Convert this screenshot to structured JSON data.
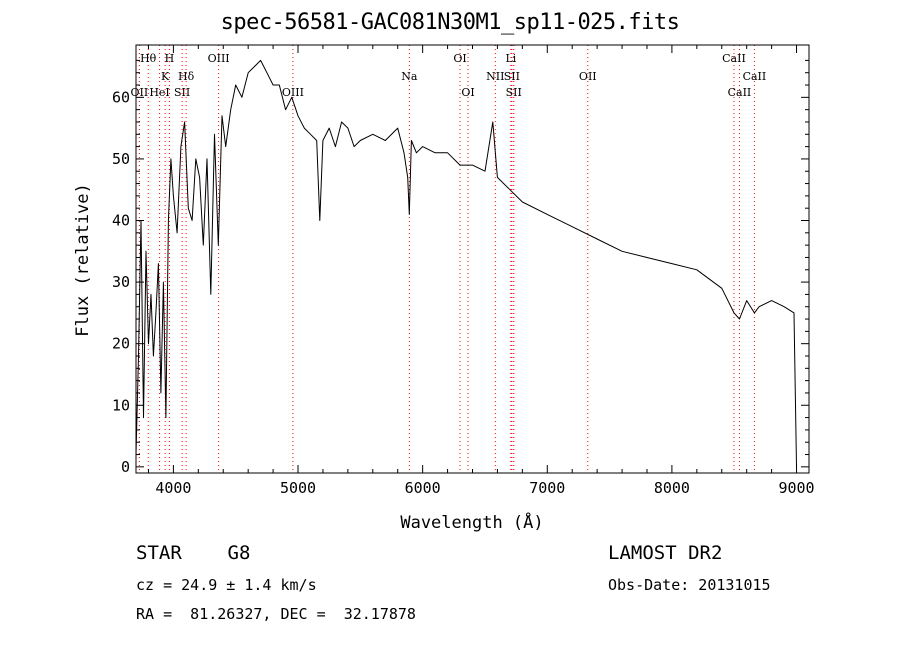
{
  "header": {
    "title": "spec-56581-GAC081N30M1_sp11-025.fits"
  },
  "info": {
    "object_class": "STAR    G8",
    "redshift": "cz = 24.9 ± 1.4 km/s",
    "coordinates": "RA =  81.26327, DEC =  32.17878",
    "survey": "LAMOST DR2",
    "obs_date": "Obs-Date: 20131015"
  },
  "chart_data": {
    "type": "line",
    "title": "spec-56581-GAC081N30M1_sp11-025.fits",
    "xlabel": "Wavelength (Å)",
    "ylabel": "Flux (relative)",
    "xlim": [
      3700,
      9100
    ],
    "ylim": [
      -1,
      68.5
    ],
    "xticks": [
      4000,
      5000,
      6000,
      7000,
      8000,
      9000
    ],
    "yticks": [
      0,
      10,
      20,
      30,
      40,
      50,
      60
    ],
    "grid": false,
    "line_color": "#000000",
    "marker_color": "#ff0000",
    "series": [
      {
        "x": [
          3700,
          3720,
          3740,
          3760,
          3780,
          3800,
          3820,
          3840,
          3860,
          3880,
          3900,
          3920,
          3940,
          3960,
          3980,
          4000,
          4030,
          4060,
          4090,
          4120,
          4150,
          4180,
          4210,
          4240,
          4270,
          4300,
          4330,
          4360,
          4390,
          4420,
          4460,
          4500,
          4550,
          4600,
          4650,
          4700,
          4750,
          4800,
          4850,
          4900,
          4950,
          5000,
          5050,
          5100,
          5150,
          5175,
          5200,
          5250,
          5300,
          5350,
          5400,
          5450,
          5500,
          5600,
          5700,
          5800,
          5850,
          5880,
          5893,
          5910,
          5950,
          6000,
          6100,
          6200,
          6300,
          6400,
          6500,
          6563,
          6600,
          6700,
          6800,
          7000,
          7200,
          7400,
          7600,
          7800,
          8000,
          8200,
          8400,
          8498,
          8542,
          8600,
          8662,
          8700,
          8800,
          8900,
          8980,
          9000
        ],
        "y": [
          2,
          18,
          40,
          8,
          35,
          20,
          28,
          18,
          25,
          33,
          12,
          30,
          8,
          40,
          50,
          44,
          38,
          52,
          56,
          42,
          40,
          50,
          47,
          36,
          50,
          28,
          54,
          36,
          57,
          52,
          58,
          62,
          60,
          64,
          65,
          66,
          64,
          62,
          62,
          58,
          60,
          57,
          55,
          54,
          53,
          40,
          53,
          55,
          52,
          56,
          55,
          52,
          53,
          54,
          53,
          55,
          51,
          47,
          41,
          53,
          51,
          52,
          51,
          51,
          49,
          49,
          48,
          56,
          47,
          45,
          43,
          41,
          39,
          37,
          35,
          34,
          33,
          32,
          29,
          25,
          24,
          27,
          25,
          26,
          27,
          26,
          25,
          0
        ]
      }
    ],
    "lines": [
      {
        "label": "Hθ",
        "wavelength": 3798,
        "row": 1
      },
      {
        "label": "OII",
        "wavelength": 3727,
        "row": 3
      },
      {
        "label": "HeI",
        "wavelength": 3889,
        "row": 3
      },
      {
        "label": "K",
        "wavelength": 3934,
        "row": 2
      },
      {
        "label": "H",
        "wavelength": 3968,
        "row": 1
      },
      {
        "label": "SII",
        "wavelength": 4070,
        "row": 3
      },
      {
        "label": "Hδ",
        "wavelength": 4102,
        "row": 2
      },
      {
        "label": "OIII",
        "wavelength": 4363,
        "row": 1
      },
      {
        "label": "OIII",
        "wavelength": 4959,
        "row": 3
      },
      {
        "label": "Na",
        "wavelength": 5893,
        "row": 2
      },
      {
        "label": "OI",
        "wavelength": 6300,
        "row": 1
      },
      {
        "label": "OI",
        "wavelength": 6364,
        "row": 3
      },
      {
        "label": "NII",
        "wavelength": 6583,
        "row": 2
      },
      {
        "label": "Li",
        "wavelength": 6708,
        "row": 1
      },
      {
        "label": "SII",
        "wavelength": 6716,
        "row": 2
      },
      {
        "label": "SII",
        "wavelength": 6731,
        "row": 3
      },
      {
        "label": "OII",
        "wavelength": 7325,
        "row": 2
      },
      {
        "label": "CaII",
        "wavelength": 8498,
        "row": 1
      },
      {
        "label": "CaII",
        "wavelength": 8542,
        "row": 3
      },
      {
        "label": "CaII",
        "wavelength": 8662,
        "row": 2
      }
    ]
  }
}
